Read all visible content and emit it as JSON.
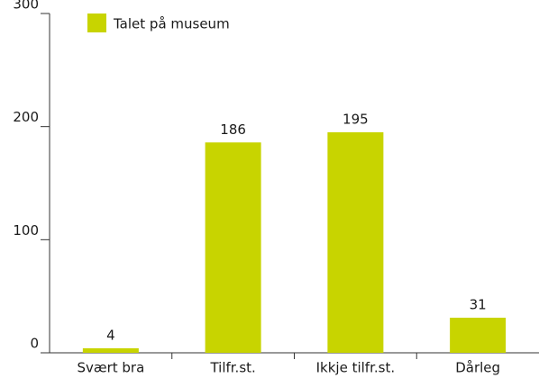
{
  "chart_data": {
    "type": "bar",
    "categories": [
      "Svært bra",
      "Tilfr.st.",
      "Ikkje tilfr.st.",
      "Dårleg"
    ],
    "series": [
      {
        "name": "Talet på museum",
        "color": "#c8d400",
        "values": [
          4,
          186,
          195,
          31
        ]
      }
    ],
    "ylim": [
      0,
      300
    ],
    "yticks": [
      0,
      100,
      200,
      300
    ],
    "grid": false,
    "legend": "top-left"
  }
}
